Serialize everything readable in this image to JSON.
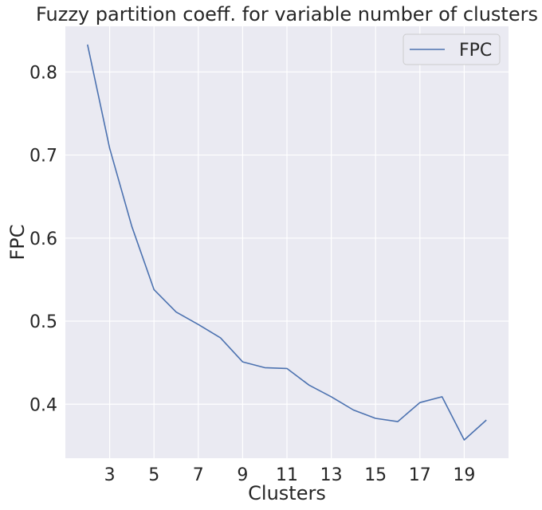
{
  "chart_data": {
    "type": "line",
    "title": "Fuzzy partition coeff. for variable number of clusters",
    "xlabel": "Clusters",
    "ylabel": "FPC",
    "xlim": [
      1.0,
      21.0
    ],
    "ylim": [
      0.335,
      0.855
    ],
    "xticks": [
      3,
      5,
      7,
      9,
      11,
      13,
      15,
      17,
      19
    ],
    "yticks": [
      0.4,
      0.5,
      0.6,
      0.7,
      0.8
    ],
    "ytick_labels": [
      "0.4",
      "0.5",
      "0.6",
      "0.7",
      "0.8"
    ],
    "grid": true,
    "legend": "top-right",
    "background": "#eaeaf2",
    "series": [
      {
        "name": "FPC",
        "color": "#4c72b0",
        "x": [
          2,
          3,
          4,
          5,
          6,
          7,
          8,
          9,
          10,
          11,
          12,
          13,
          14,
          15,
          16,
          17,
          18,
          19,
          20
        ],
        "values": [
          0.833,
          0.708,
          0.614,
          0.538,
          0.511,
          0.496,
          0.48,
          0.451,
          0.444,
          0.443,
          0.423,
          0.409,
          0.393,
          0.383,
          0.379,
          0.402,
          0.409,
          0.357,
          0.381
        ]
      }
    ]
  }
}
